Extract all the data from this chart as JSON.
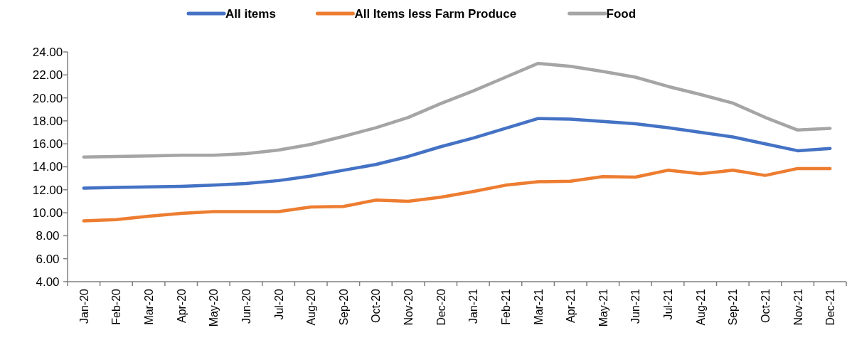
{
  "chart_data": {
    "type": "line",
    "categories": [
      "Jan-20",
      "Feb-20",
      "Mar-20",
      "Apr-20",
      "May-20",
      "Jun-20",
      "Jul-20",
      "Aug-20",
      "Sep-20",
      "Oct-20",
      "Nov-20",
      "Dec-20",
      "Jan-21",
      "Feb-21",
      "Mar-21",
      "Apr-21",
      "May-21",
      "Jun-21",
      "Jul-21",
      "Aug-21",
      "Sep-21",
      "Oct-21",
      "Nov-21",
      "Dec-21"
    ],
    "series": [
      {
        "name": "All items",
        "color": "#4472c4",
        "values": [
          12.15,
          12.2,
          12.25,
          12.3,
          12.4,
          12.55,
          12.8,
          13.2,
          13.7,
          14.2,
          14.9,
          15.75,
          16.5,
          17.35,
          18.2,
          18.15,
          17.95,
          17.75,
          17.4,
          17.0,
          16.6,
          16.0,
          15.4,
          15.6
        ]
      },
      {
        "name": "All Items less Farm Produce",
        "color": "#ed7d31",
        "values": [
          9.3,
          9.4,
          9.7,
          9.95,
          10.1,
          10.1,
          10.1,
          10.5,
          10.55,
          11.1,
          11.0,
          11.35,
          11.85,
          12.4,
          12.7,
          12.75,
          13.15,
          13.1,
          13.7,
          13.4,
          13.7,
          13.25,
          13.85,
          13.85
        ]
      },
      {
        "name": "Food",
        "color": "#a5a5a5",
        "values": [
          14.85,
          14.9,
          14.95,
          15.0,
          15.0,
          15.15,
          15.45,
          15.95,
          16.65,
          17.4,
          18.3,
          19.5,
          20.6,
          21.8,
          23.0,
          22.75,
          22.3,
          21.8,
          21.0,
          20.3,
          19.55,
          18.3,
          17.2,
          17.35
        ]
      }
    ],
    "ylim": [
      4,
      24
    ],
    "yticks": [
      {
        "value": 4,
        "label": "4.00"
      },
      {
        "value": 6,
        "label": "6.00"
      },
      {
        "value": 8,
        "label": "8.00"
      },
      {
        "value": 10,
        "label": "10.00"
      },
      {
        "value": 12,
        "label": "12.00"
      },
      {
        "value": 14,
        "label": "14.00"
      },
      {
        "value": 16,
        "label": "16.00"
      },
      {
        "value": 18,
        "label": "18.00"
      },
      {
        "value": 20,
        "label": "20.00"
      },
      {
        "value": 22,
        "label": "22.00"
      },
      {
        "value": 24,
        "label": "24.00"
      }
    ],
    "legend": "top",
    "grid": false,
    "marker": "none",
    "line_style": "solid"
  }
}
